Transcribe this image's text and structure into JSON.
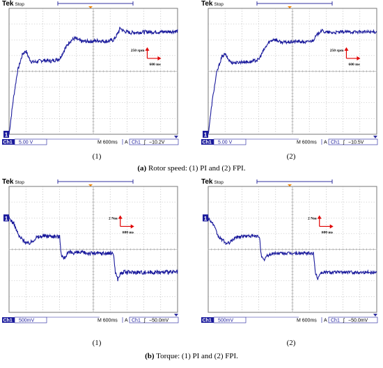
{
  "figure": {
    "caption_a": {
      "tag": "(a)",
      "text": " Rotor speed: (1) PI and (2) FPI."
    },
    "caption_b": {
      "tag": "(b)",
      "text": " Torque: (1) PI and (2) FPI."
    }
  },
  "chart_data": [
    {
      "id": "speed-pi",
      "type": "line",
      "scope_brand": "Tek",
      "scope_state": "Stop",
      "sublabel": "(1)",
      "ch_label": "Ch1",
      "ch_scale": "5.00 V",
      "timebase": "M 600ms",
      "trig_mode": "A",
      "trig_ch": "Ch1",
      "trig_slope": "ʃ",
      "trig_level": "−10.2V",
      "scale_y_label": "250 rpm",
      "scale_x_label": "600 ms",
      "ground_marker": "1",
      "trace_color": "#1a1a9c",
      "xlim": [
        0,
        10
      ],
      "ylim": [
        0,
        8
      ],
      "x": [
        0,
        0.25,
        0.5,
        0.8,
        1.0,
        1.2,
        1.35,
        1.6,
        2.0,
        2.5,
        3.0,
        3.3,
        3.6,
        3.9,
        4.3,
        4.8,
        5.3,
        5.8,
        6.2,
        6.4,
        6.6,
        6.8,
        7.2,
        8.0,
        9.0,
        10
      ],
      "y": [
        0,
        2.2,
        4.0,
        5.1,
        5.3,
        4.8,
        4.6,
        4.6,
        4.7,
        4.65,
        4.8,
        5.4,
        5.9,
        6.1,
        5.9,
        5.9,
        5.95,
        5.9,
        6.0,
        6.3,
        6.75,
        6.55,
        6.45,
        6.5,
        6.5,
        6.55
      ],
      "noise": 0.12
    },
    {
      "id": "speed-fpi",
      "type": "line",
      "scope_brand": "Tek",
      "scope_state": "Stop",
      "sublabel": "(2)",
      "ch_label": "Ch1",
      "ch_scale": "5.00 V",
      "timebase": "M 600ms",
      "trig_mode": "A",
      "trig_ch": "Ch1",
      "trig_slope": "ʃ",
      "trig_level": "−10.5V",
      "scale_y_label": "250 rpm",
      "scale_x_label": "600 ms",
      "ground_marker": "1",
      "trace_color": "#1a1a9c",
      "xlim": [
        0,
        10
      ],
      "ylim": [
        0,
        8
      ],
      "x": [
        0,
        0.25,
        0.5,
        0.8,
        1.0,
        1.2,
        1.4,
        1.7,
        2.0,
        2.5,
        3.0,
        3.3,
        3.6,
        3.9,
        4.3,
        4.8,
        5.3,
        5.8,
        6.2,
        6.45,
        6.7,
        6.9,
        7.3,
        8.0,
        9.0,
        10
      ],
      "y": [
        0,
        2.2,
        3.9,
        4.9,
        5.1,
        4.75,
        4.55,
        4.55,
        4.6,
        4.6,
        4.75,
        5.35,
        5.85,
        6.05,
        5.85,
        5.85,
        5.9,
        5.85,
        5.95,
        6.3,
        6.6,
        6.5,
        6.45,
        6.5,
        6.5,
        6.5
      ],
      "noise": 0.1
    },
    {
      "id": "torque-pi",
      "type": "line",
      "scope_brand": "Tek",
      "scope_state": "Stop",
      "sublabel": "(1)",
      "ch_label": "Ch1",
      "ch_scale": "500mV",
      "timebase": "M 600ms",
      "trig_mode": "A",
      "trig_ch": "Ch1",
      "trig_slope": "ʃ",
      "trig_level": "−50.0mV",
      "scale_y_label": "2 Nm",
      "scale_x_label": "600 ms",
      "ground_marker": "1",
      "trace_color": "#1a1a9c",
      "xlim": [
        0,
        10
      ],
      "ylim": [
        -4,
        4
      ],
      "x": [
        0,
        0.3,
        0.6,
        0.9,
        1.1,
        1.3,
        1.6,
        2.0,
        2.6,
        3.0,
        3.1,
        3.25,
        3.4,
        3.6,
        4.0,
        5.0,
        6.2,
        6.3,
        6.45,
        6.6,
        6.8,
        7.2,
        8.5,
        10
      ],
      "y": [
        2.0,
        1.6,
        0.8,
        0.55,
        0.35,
        0.45,
        0.75,
        0.85,
        0.85,
        0.8,
        -0.3,
        -0.6,
        -0.35,
        -0.2,
        -0.2,
        -0.25,
        -0.25,
        -1.4,
        -1.9,
        -1.55,
        -1.45,
        -1.45,
        -1.45,
        -1.45
      ],
      "noise": 0.13
    },
    {
      "id": "torque-fpi",
      "type": "line",
      "scope_brand": "Tek",
      "scope_state": "Stop",
      "sublabel": "(2)",
      "ch_label": "Ch1",
      "ch_scale": "500mV",
      "timebase": "M 600ms",
      "trig_mode": "A",
      "trig_ch": "Ch1",
      "trig_slope": "ʃ",
      "trig_level": "−50.0mV",
      "scale_y_label": "2 Nm",
      "scale_x_label": "600 ms",
      "ground_marker": "1",
      "trace_color": "#1a1a9c",
      "xlim": [
        0,
        10
      ],
      "ylim": [
        -4,
        4
      ],
      "x": [
        0,
        0.3,
        0.6,
        0.9,
        1.1,
        1.3,
        1.6,
        2.0,
        2.6,
        3.05,
        3.15,
        3.3,
        3.45,
        3.7,
        4.0,
        5.0,
        6.25,
        6.35,
        6.5,
        6.65,
        6.85,
        7.2,
        8.5,
        10
      ],
      "y": [
        2.0,
        1.6,
        0.8,
        0.55,
        0.35,
        0.45,
        0.75,
        0.85,
        0.85,
        0.8,
        -0.45,
        -0.7,
        -0.45,
        -0.3,
        -0.25,
        -0.25,
        -0.25,
        -1.45,
        -1.85,
        -1.5,
        -1.45,
        -1.45,
        -1.45,
        -1.45
      ],
      "noise": 0.1
    }
  ]
}
